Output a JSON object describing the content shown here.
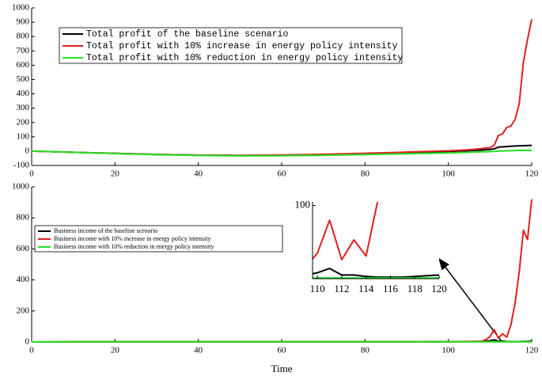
{
  "chart_data": [
    {
      "type": "line",
      "x": [
        0,
        10,
        20,
        30,
        40,
        50,
        60,
        70,
        80,
        90,
        100,
        104,
        106,
        108,
        110,
        111,
        112,
        113,
        114,
        115,
        116,
        117,
        118,
        119,
        120
      ],
      "series": [
        {
          "name": "Total profit of the baseline scenario",
          "color": "#000000",
          "values": [
            0,
            -8,
            -16,
            -23,
            -28,
            -30,
            -28,
            -24,
            -17,
            -10,
            -2,
            2,
            5,
            8,
            12,
            16,
            28,
            30,
            32,
            34,
            36,
            37,
            38,
            39,
            40
          ]
        },
        {
          "name": "Total profit with 10% increase in energy policy intensity",
          "color": "#e02020",
          "values": [
            0,
            -8,
            -16,
            -23,
            -28,
            -30,
            -27,
            -22,
            -15,
            -7,
            2,
            8,
            12,
            18,
            25,
            40,
            110,
            120,
            165,
            175,
            220,
            330,
            620,
            780,
            920
          ]
        },
        {
          "name": "Total profit with 10% reduction in energy policy intensity",
          "color": "#22e022",
          "values": [
            0,
            -8,
            -17,
            -25,
            -30,
            -33,
            -32,
            -29,
            -24,
            -18,
            -12,
            -9,
            -7,
            -5,
            -3,
            -2,
            0,
            1,
            2,
            3,
            4,
            5,
            5,
            6,
            6
          ]
        }
      ],
      "xlim": [
        0,
        120
      ],
      "xticks": [
        0,
        20,
        40,
        60,
        80,
        100,
        120
      ],
      "ylim": [
        -100,
        1000
      ],
      "yticks": [
        -100,
        0,
        100,
        200,
        300,
        400,
        500,
        600,
        700,
        800,
        900,
        1000
      ],
      "legend": "upper left"
    },
    {
      "type": "line",
      "x_label": "Time",
      "x": [
        0,
        10,
        20,
        30,
        40,
        50,
        60,
        70,
        80,
        90,
        100,
        104,
        106,
        108,
        109,
        110,
        111,
        112,
        113,
        114,
        115,
        116,
        117,
        118,
        119,
        120
      ],
      "series": [
        {
          "name": "Business income of the baseline scenario",
          "color": "#000000",
          "values": [
            0,
            1,
            1,
            1,
            1,
            1,
            1,
            1,
            1,
            1,
            2,
            2,
            2,
            3,
            5,
            8,
            14,
            5,
            5,
            3,
            2,
            2,
            2,
            3,
            4,
            5
          ]
        },
        {
          "name": "Business income with 10% increase in energy policy intensity",
          "color": "#e02020",
          "values": [
            0,
            1,
            1,
            1,
            1,
            1,
            1,
            1,
            1,
            1,
            2,
            3,
            4,
            5,
            15,
            35,
            80,
            26,
            53,
            31,
            110,
            250,
            450,
            720,
            660,
            920
          ]
        },
        {
          "name": "Business income with 10% reduction in energy policy intensity",
          "color": "#22e022",
          "values": [
            0,
            1,
            1,
            1,
            1,
            1,
            1,
            1,
            1,
            1,
            1,
            1,
            1,
            1,
            1,
            1,
            1,
            1,
            1,
            1,
            1,
            1,
            1,
            1,
            1,
            1
          ]
        }
      ],
      "xlim": [
        0,
        120
      ],
      "xticks": [
        0,
        20,
        40,
        60,
        80,
        100,
        120
      ],
      "ylim": [
        0,
        1000
      ],
      "yticks": [
        0,
        200,
        400,
        600,
        800,
        1000
      ],
      "legend": "center left",
      "inset": {
        "xlim": [
          109.6,
          120
        ],
        "xticks": [
          110,
          112,
          114,
          116,
          118,
          120
        ],
        "ylim": [
          0,
          105
        ],
        "yticks": [
          100
        ]
      }
    }
  ]
}
